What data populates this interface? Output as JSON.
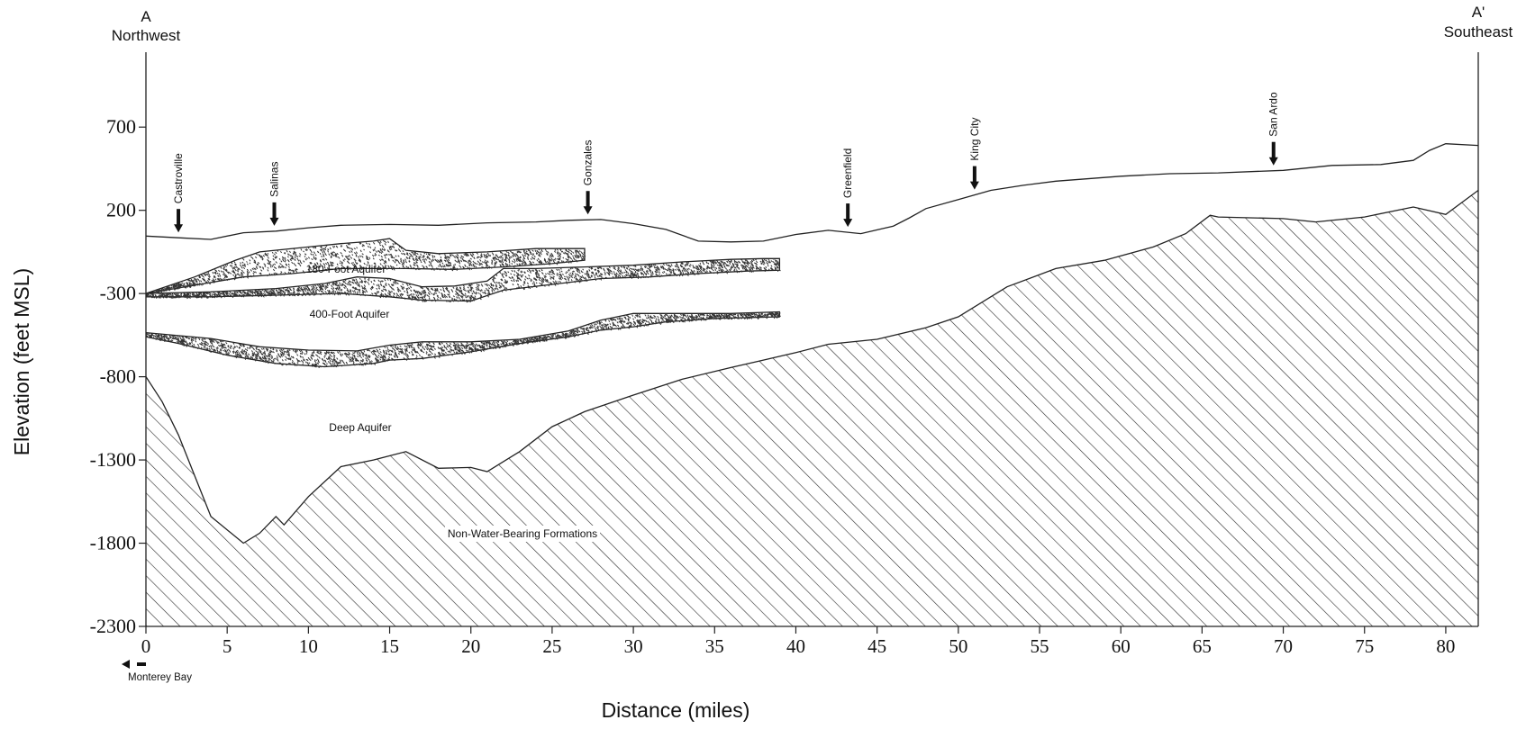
{
  "axes": {
    "y_title": "Elevation (feet MSL)",
    "x_title": "Distance (miles)",
    "y_ticks": [
      "700",
      "200",
      "-300",
      "-800",
      "-1300",
      "-1800",
      "-2300"
    ],
    "x_ticks": [
      "0",
      "5",
      "10",
      "15",
      "20",
      "25",
      "30",
      "35",
      "40",
      "45",
      "50",
      "55",
      "60",
      "65",
      "70",
      "75",
      "80"
    ]
  },
  "section_ends": {
    "left_letter": "A",
    "left_direction": "Northwest",
    "right_letter": "A'",
    "right_direction": "Southeast"
  },
  "towns": [
    {
      "name": "Castroville",
      "mile": 2.0
    },
    {
      "name": "Salinas",
      "mile": 7.9
    },
    {
      "name": "Gonzales",
      "mile": 27.2
    },
    {
      "name": "Greenfield",
      "mile": 43.2
    },
    {
      "name": "King City",
      "mile": 51.0
    },
    {
      "name": "San Ardo",
      "mile": 69.4
    }
  ],
  "units": {
    "aquifer_180": "180-Foot Aquifer",
    "aquifer_400": "400-Foot Aquifer",
    "deep_aquifer": "Deep Aquifer",
    "non_water": "Non-Water-Bearing Formations"
  },
  "direction_note": "Monterey Bay",
  "colors": {
    "ink": "#222222",
    "hatch": "#2a2a2a",
    "stipple": "#333333"
  },
  "chart_data": {
    "type": "cross-section",
    "xlabel": "Distance (miles)",
    "ylabel": "Elevation (feet MSL)",
    "xlim": [
      0,
      82
    ],
    "ylim": [
      -2300,
      1150
    ],
    "ground_surface": [
      [
        0,
        45
      ],
      [
        2,
        35
      ],
      [
        4,
        25
      ],
      [
        6,
        65
      ],
      [
        8,
        75
      ],
      [
        10,
        95
      ],
      [
        12,
        110
      ],
      [
        15,
        115
      ],
      [
        18,
        110
      ],
      [
        21,
        125
      ],
      [
        24,
        130
      ],
      [
        26,
        140
      ],
      [
        28,
        145
      ],
      [
        30,
        120
      ],
      [
        32,
        85
      ],
      [
        34,
        15
      ],
      [
        36,
        10
      ],
      [
        38,
        15
      ],
      [
        40,
        55
      ],
      [
        42,
        80
      ],
      [
        44,
        60
      ],
      [
        46,
        105
      ],
      [
        47,
        155
      ],
      [
        48,
        210
      ],
      [
        50,
        265
      ],
      [
        52,
        320
      ],
      [
        54,
        350
      ],
      [
        56,
        375
      ],
      [
        60,
        405
      ],
      [
        63,
        420
      ],
      [
        66,
        425
      ],
      [
        70,
        440
      ],
      [
        73,
        470
      ],
      [
        76,
        475
      ],
      [
        78,
        500
      ],
      [
        79,
        560
      ],
      [
        80,
        600
      ],
      [
        82,
        590
      ]
    ],
    "aquifer_180_top": [
      [
        0,
        -300
      ],
      [
        3,
        -200
      ],
      [
        5.5,
        -100
      ],
      [
        7,
        -50
      ],
      [
        10,
        -20
      ],
      [
        12,
        0
      ],
      [
        14,
        15
      ],
      [
        15,
        30
      ],
      [
        16,
        -40
      ],
      [
        18,
        -60
      ],
      [
        21,
        -50
      ],
      [
        24,
        -30
      ],
      [
        27,
        -30
      ]
    ],
    "aquifer_180_bottom": [
      [
        0,
        -300
      ],
      [
        3,
        -250
      ],
      [
        6,
        -200
      ],
      [
        9,
        -180
      ],
      [
        12,
        -150
      ],
      [
        16,
        -150
      ],
      [
        19,
        -155
      ],
      [
        22,
        -140
      ],
      [
        25,
        -120
      ],
      [
        27,
        -100
      ]
    ],
    "aquifer_400_top": [
      [
        0,
        -300
      ],
      [
        4,
        -290
      ],
      [
        8,
        -270
      ],
      [
        11,
        -240
      ],
      [
        13,
        -200
      ],
      [
        15,
        -210
      ],
      [
        17,
        -260
      ],
      [
        19,
        -255
      ],
      [
        21,
        -225
      ],
      [
        22,
        -150
      ],
      [
        24,
        -150
      ],
      [
        27,
        -140
      ],
      [
        30,
        -130
      ],
      [
        33,
        -110
      ],
      [
        36,
        -95
      ],
      [
        38,
        -90
      ],
      [
        39,
        -90
      ]
    ],
    "aquifer_400_bottom": [
      [
        0,
        -320
      ],
      [
        4,
        -320
      ],
      [
        8,
        -310
      ],
      [
        12,
        -300
      ],
      [
        15,
        -320
      ],
      [
        17,
        -340
      ],
      [
        20,
        -345
      ],
      [
        22,
        -280
      ],
      [
        25,
        -245
      ],
      [
        28,
        -210
      ],
      [
        31,
        -200
      ],
      [
        34,
        -180
      ],
      [
        37,
        -165
      ],
      [
        39,
        -160
      ]
    ],
    "aquifer_400_lower_top": [
      [
        0,
        -535
      ],
      [
        4,
        -570
      ],
      [
        7,
        -620
      ],
      [
        10,
        -640
      ],
      [
        13,
        -645
      ],
      [
        15,
        -610
      ],
      [
        17,
        -590
      ],
      [
        20,
        -590
      ],
      [
        23,
        -575
      ],
      [
        26,
        -525
      ],
      [
        28,
        -460
      ],
      [
        30,
        -420
      ],
      [
        32,
        -420
      ],
      [
        36,
        -420
      ],
      [
        39,
        -410
      ]
    ],
    "aquifer_400_lower_bottom": [
      [
        0,
        -560
      ],
      [
        2,
        -600
      ],
      [
        5,
        -670
      ],
      [
        8,
        -720
      ],
      [
        11,
        -740
      ],
      [
        14,
        -720
      ],
      [
        15,
        -700
      ],
      [
        17,
        -690
      ],
      [
        20,
        -650
      ],
      [
        23,
        -600
      ],
      [
        26,
        -560
      ],
      [
        28,
        -520
      ],
      [
        30,
        -500
      ],
      [
        32,
        -470
      ],
      [
        35,
        -450
      ],
      [
        39,
        -440
      ]
    ],
    "basement_surface": [
      [
        0,
        -800
      ],
      [
        1,
        -950
      ],
      [
        2,
        -1150
      ],
      [
        4,
        -1640
      ],
      [
        6,
        -1800
      ],
      [
        7,
        -1740
      ],
      [
        8,
        -1640
      ],
      [
        8.5,
        -1690
      ],
      [
        10,
        -1520
      ],
      [
        12,
        -1340
      ],
      [
        14,
        -1300
      ],
      [
        16,
        -1250
      ],
      [
        18,
        -1350
      ],
      [
        20,
        -1345
      ],
      [
        21,
        -1370
      ],
      [
        23,
        -1250
      ],
      [
        25,
        -1100
      ],
      [
        27,
        -1010
      ],
      [
        30,
        -910
      ],
      [
        33,
        -815
      ],
      [
        36,
        -745
      ],
      [
        38,
        -700
      ],
      [
        40,
        -655
      ],
      [
        42,
        -605
      ],
      [
        45,
        -575
      ],
      [
        48,
        -505
      ],
      [
        50,
        -440
      ],
      [
        53,
        -260
      ],
      [
        56,
        -150
      ],
      [
        59,
        -100
      ],
      [
        62,
        -20
      ],
      [
        64,
        60
      ],
      [
        65.5,
        170
      ],
      [
        66,
        160
      ],
      [
        70,
        150
      ],
      [
        72,
        130
      ],
      [
        75,
        160
      ],
      [
        78,
        220
      ],
      [
        80,
        175
      ],
      [
        82,
        320
      ]
    ]
  }
}
